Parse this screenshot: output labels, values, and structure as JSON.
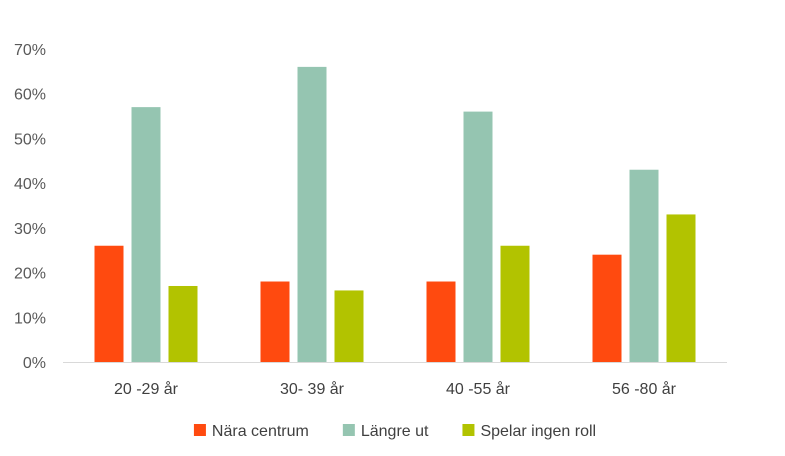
{
  "chart_data": {
    "type": "bar",
    "categories": [
      "20 -29 år",
      "30- 39 år",
      "40 -55 år",
      "56 -80 år"
    ],
    "series": [
      {
        "name": "Nära centrum",
        "values": [
          26,
          18,
          18,
          24
        ],
        "color": "#ff4a0f"
      },
      {
        "name": "Längre ut",
        "values": [
          57,
          66,
          56,
          43
        ],
        "color": "#95c5b1"
      },
      {
        "name": "Spelar ingen roll",
        "values": [
          17,
          16,
          26,
          33
        ],
        "color": "#b2c300"
      }
    ],
    "ylim": [
      0,
      70
    ],
    "yticks": [
      "0%",
      "10%",
      "20%",
      "30%",
      "40%",
      "50%",
      "60%",
      "70%"
    ],
    "grid": false,
    "legend": "bottom"
  }
}
